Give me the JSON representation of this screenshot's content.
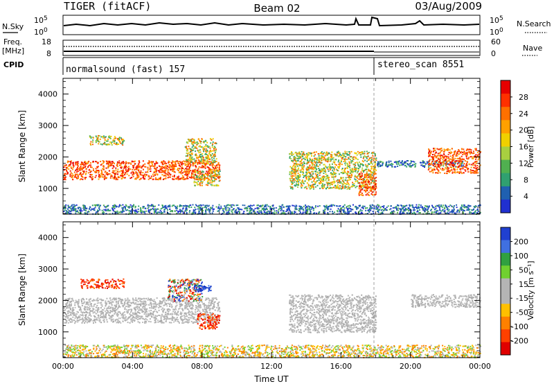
{
  "header": {
    "radar_title": "TIGER (fitACF)",
    "beam": "Beam 02",
    "date": "03/Aug/2009"
  },
  "top_panels": {
    "nsky_label": "N.Sky",
    "nsearch_label": "N.Search",
    "nsky_ticks_left": [
      "10^5",
      "10^0"
    ],
    "nsky_ticks_right": [
      "10^5",
      "10^0"
    ],
    "freq_label": "Freq.",
    "freq_unit": "[MHz]",
    "freq_ticks": [
      "18",
      "8"
    ],
    "nave_label": "Nave",
    "nave_ticks": [
      "60",
      "0"
    ],
    "cpid_label": "CPID",
    "cpid_modes": [
      {
        "name": "normalsound (fast) 157",
        "start_hour": 0,
        "end_hour": 18
      },
      {
        "name": "stereo_scan 8551",
        "start_hour": 18,
        "end_hour": 24
      }
    ]
  },
  "power_colorbar": {
    "label": "Power [dB]",
    "ticks": [
      "28",
      "24",
      "20",
      "16",
      "12",
      "8",
      "4"
    ],
    "colors": [
      "#e60000",
      "#ff3000",
      "#ff7000",
      "#ffa000",
      "#f0d000",
      "#a8d040",
      "#50b050",
      "#30a070",
      "#2060b0",
      "#2030d0"
    ]
  },
  "velocity_colorbar": {
    "label": "Velocity [m s⁻¹]",
    "ticks": [
      "200",
      "100",
      "50",
      "15",
      "-15",
      "-50",
      "-100",
      "-200"
    ],
    "colors": [
      "#2040d0",
      "#4070e0",
      "#30a040",
      "#70d030",
      "#b4b4b4",
      "#b4b4b4",
      "#ffc000",
      "#ff8000",
      "#ff4000",
      "#e00000"
    ]
  },
  "chart_data": [
    {
      "type": "heatmap",
      "title": "",
      "ylabel": "Slant Range [km]",
      "xlabel": "",
      "x_ticks": [
        "00:00",
        "04:00",
        "08:00",
        "12:00",
        "16:00",
        "20:00",
        "00:00"
      ],
      "y_ticks": [
        "4000",
        "3000",
        "2000",
        "1000"
      ],
      "xlim_hours": [
        0,
        24
      ],
      "ylim_km": [
        180,
        4500
      ],
      "scatter_regions": [
        {
          "x": [
            0,
            9
          ],
          "y": [
            1300,
            1900
          ],
          "level": "high"
        },
        {
          "x": [
            7,
            8.8
          ],
          "y": [
            1800,
            2600
          ],
          "level": "mid"
        },
        {
          "x": [
            7.5,
            9
          ],
          "y": [
            1100,
            1600
          ],
          "level": "mid"
        },
        {
          "x": [
            1.5,
            3.5
          ],
          "y": [
            2400,
            2700
          ],
          "level": "mid"
        },
        {
          "x": [
            13,
            18
          ],
          "y": [
            1000,
            2200
          ],
          "level": "mid"
        },
        {
          "x": [
            17,
            18
          ],
          "y": [
            800,
            1500
          ],
          "level": "high"
        },
        {
          "x": [
            18,
            23
          ],
          "y": [
            1700,
            1900
          ],
          "level": "low"
        },
        {
          "x": [
            21,
            24
          ],
          "y": [
            1500,
            2300
          ],
          "level": "high"
        },
        {
          "x": [
            0,
            24
          ],
          "y": [
            200,
            500
          ],
          "level": "low"
        }
      ]
    },
    {
      "type": "heatmap",
      "title": "",
      "ylabel": "Slant Range [km]",
      "xlabel": "Time UT",
      "x_ticks": [
        "00:00",
        "04:00",
        "08:00",
        "12:00",
        "16:00",
        "20:00",
        "00:00"
      ],
      "y_ticks": [
        "4000",
        "3000",
        "2000",
        "1000"
      ],
      "xlim_hours": [
        0,
        24
      ],
      "ylim_km": [
        180,
        4500
      ],
      "scatter_regions": [
        {
          "x": [
            0,
            9
          ],
          "y": [
            1300,
            2100
          ],
          "level": "ground"
        },
        {
          "x": [
            1,
            3.5
          ],
          "y": [
            2400,
            2700
          ],
          "level": "away"
        },
        {
          "x": [
            6,
            8
          ],
          "y": [
            2000,
            2700
          ],
          "level": "mixed"
        },
        {
          "x": [
            7.5,
            8.5
          ],
          "y": [
            2300,
            2500
          ],
          "level": "toward"
        },
        {
          "x": [
            7.7,
            9
          ],
          "y": [
            1100,
            1600
          ],
          "level": "away"
        },
        {
          "x": [
            13,
            18
          ],
          "y": [
            1000,
            2200
          ],
          "level": "ground"
        },
        {
          "x": [
            20,
            24
          ],
          "y": [
            1800,
            2200
          ],
          "level": "ground"
        },
        {
          "x": [
            0,
            24
          ],
          "y": [
            200,
            600
          ],
          "level": "away-light"
        }
      ]
    }
  ]
}
